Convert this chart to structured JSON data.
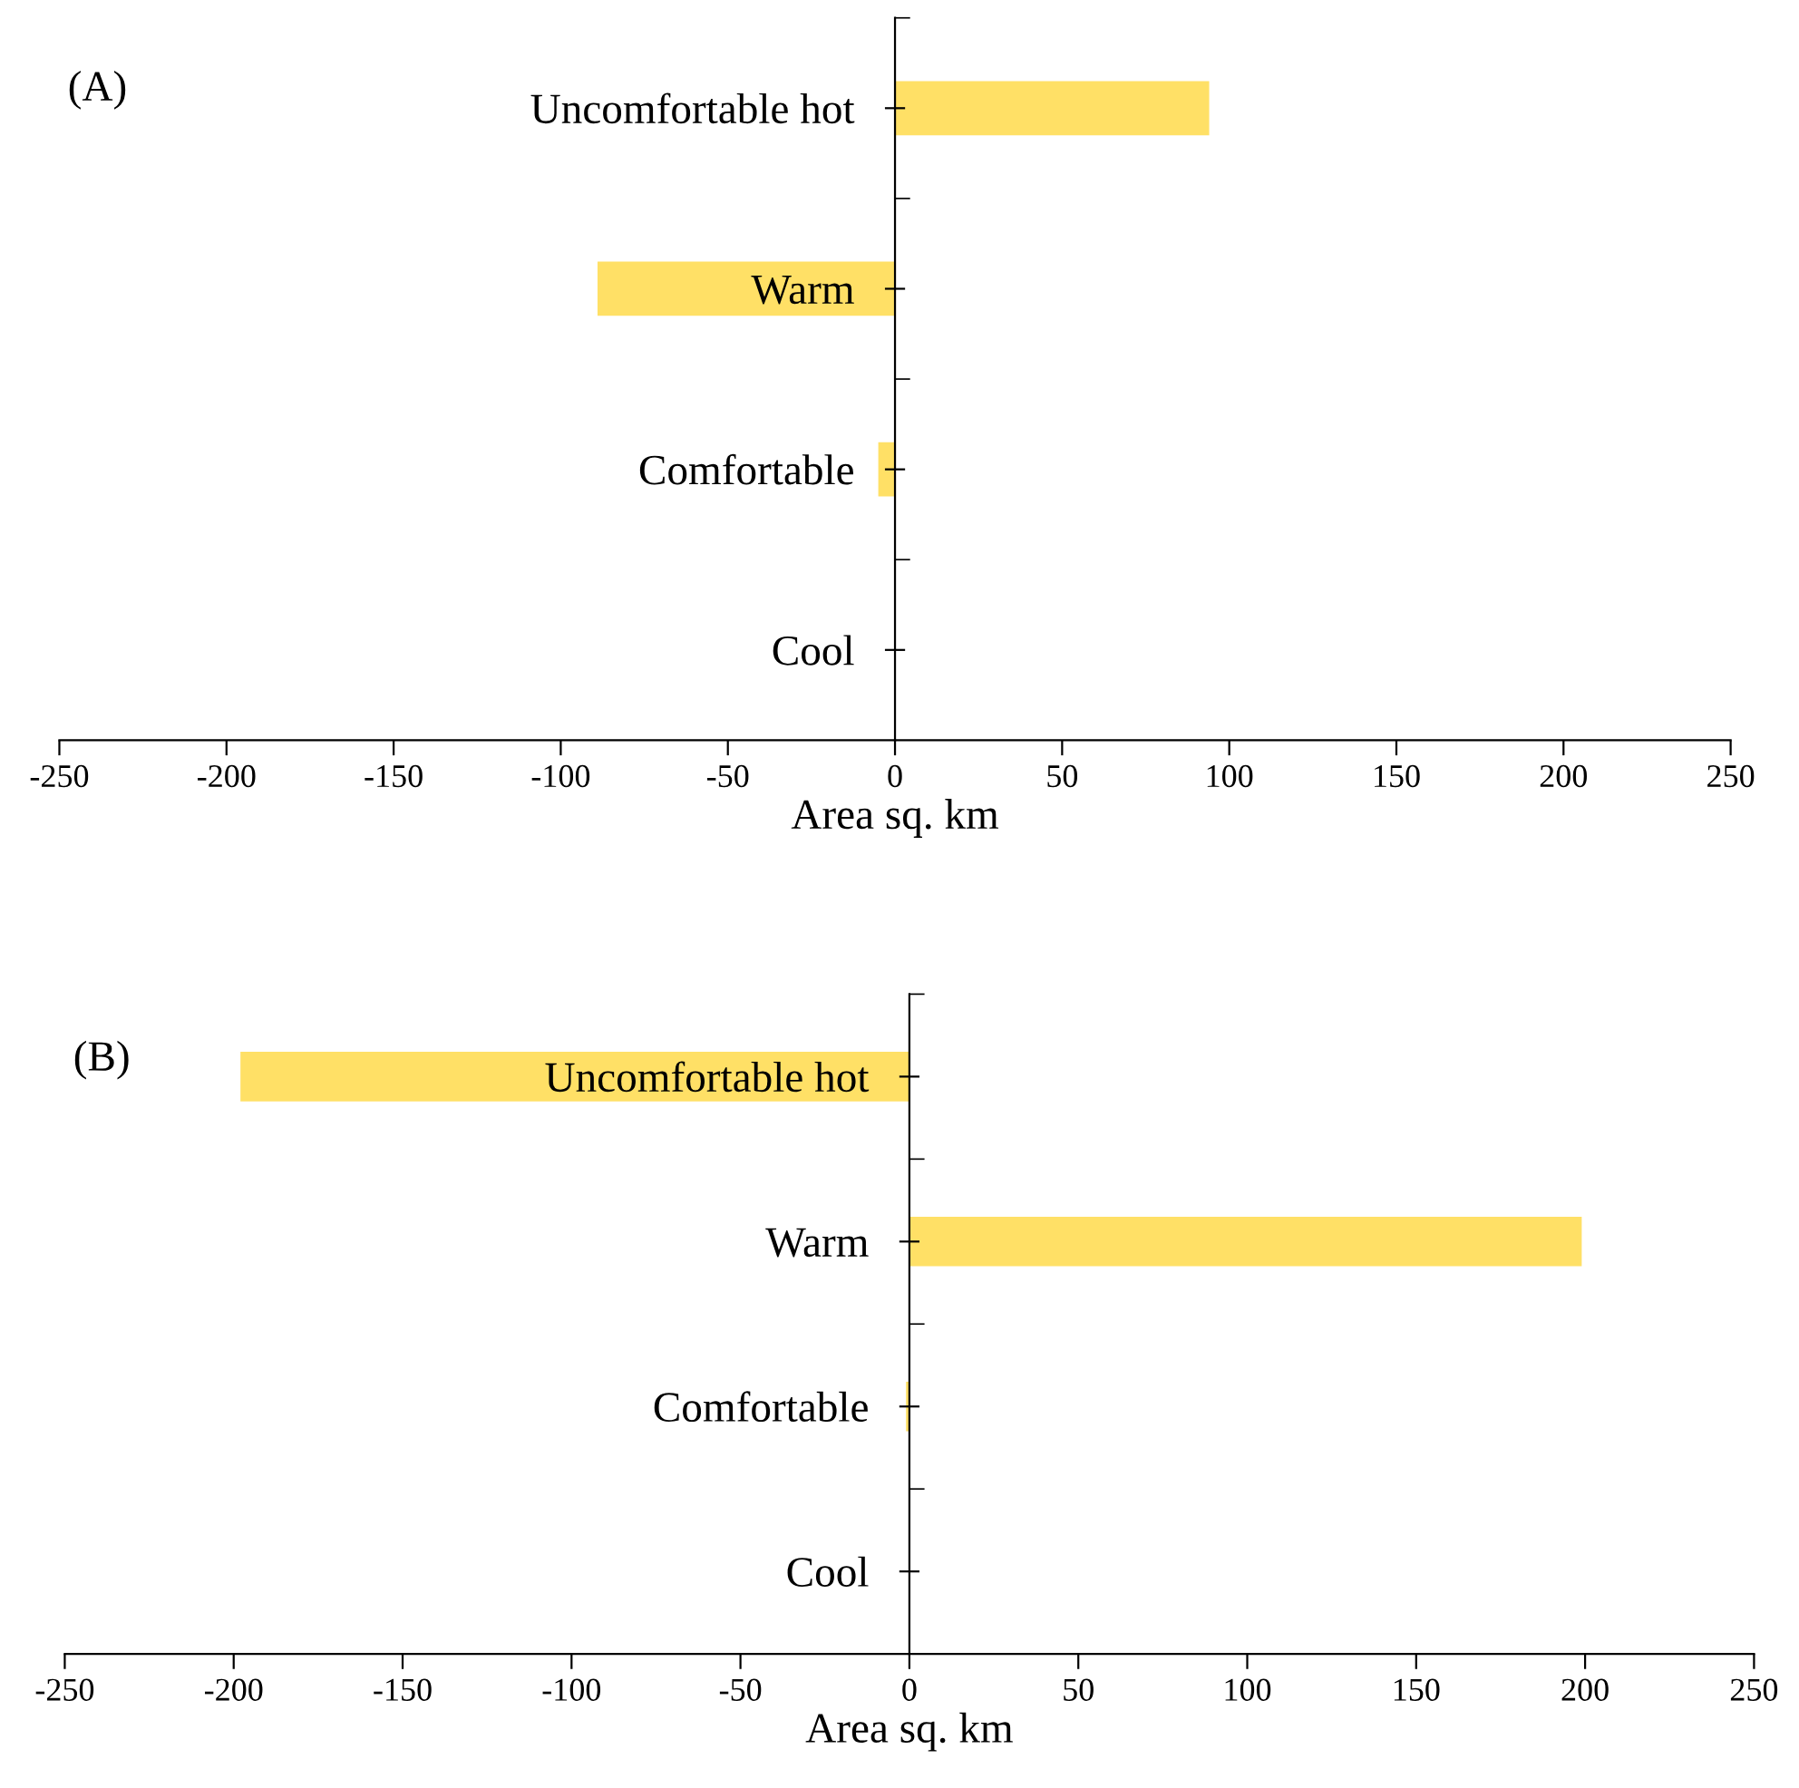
{
  "chart_data": [
    {
      "type": "bar",
      "orientation": "horizontal",
      "title": "(A)",
      "xlabel": "Area sq. km",
      "categories": [
        "Uncomfortable hot",
        "Warm",
        "Comfortable",
        "Cool"
      ],
      "values": [
        94,
        -89,
        -5,
        0
      ],
      "color": "#ffe066",
      "xlim": [
        -250,
        250
      ],
      "xticks": [
        -250,
        -200,
        -150,
        -100,
        -50,
        0,
        50,
        100,
        150,
        200,
        250
      ],
      "grid": false,
      "legend": false
    },
    {
      "type": "bar",
      "orientation": "horizontal",
      "title": "(B)",
      "xlabel": "Area sq. km",
      "categories": [
        "Uncomfortable hot",
        "Warm",
        "Comfortable",
        "Cool"
      ],
      "values": [
        -198,
        199,
        -1,
        0
      ],
      "color": "#ffe066",
      "xlim": [
        -250,
        250
      ],
      "xticks": [
        -250,
        -200,
        -150,
        -100,
        -50,
        0,
        50,
        100,
        150,
        200,
        250
      ],
      "grid": false,
      "legend": false
    }
  ]
}
